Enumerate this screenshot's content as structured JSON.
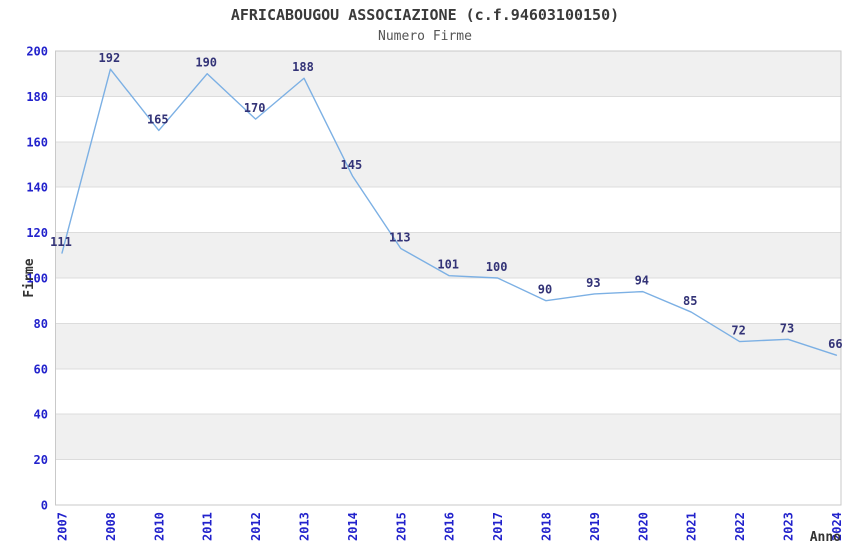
{
  "chart_data": {
    "type": "line",
    "title": "AFRICABOUGOU ASSOCIAZIONE (c.f.94603100150)",
    "subtitle": "Numero Firme",
    "xlabel": "Anno",
    "ylabel": "Firme",
    "categories": [
      "2007",
      "2008",
      "2010",
      "2011",
      "2012",
      "2013",
      "2014",
      "2015",
      "2016",
      "2017",
      "2018",
      "2019",
      "2020",
      "2021",
      "2022",
      "2023",
      "2024"
    ],
    "series": [
      {
        "name": "Numero Firme",
        "values": [
          111,
          192,
          165,
          190,
          170,
          188,
          145,
          113,
          101,
          100,
          90,
          93,
          94,
          85,
          72,
          73,
          66
        ]
      }
    ],
    "ylim": [
      0,
      200
    ],
    "ytick_step": 20,
    "yticks": [
      0,
      20,
      40,
      60,
      80,
      100,
      120,
      140,
      160,
      180,
      200
    ],
    "grid": "horizontal-bands",
    "legend_position": "none",
    "x_tick_rotation": -90,
    "colors": {
      "line": "#7cb0e4",
      "data_label": "#333377",
      "tick_label": "#2222cc",
      "band_alt": "#f0f0f0",
      "band_base": "#ffffff",
      "gridline": "#dcdcdc",
      "plot_border": "#c9c9c9",
      "title": "#3a3a3a",
      "subtitle": "#555555",
      "axis_label": "#333333",
      "background": "#ffffff"
    }
  }
}
